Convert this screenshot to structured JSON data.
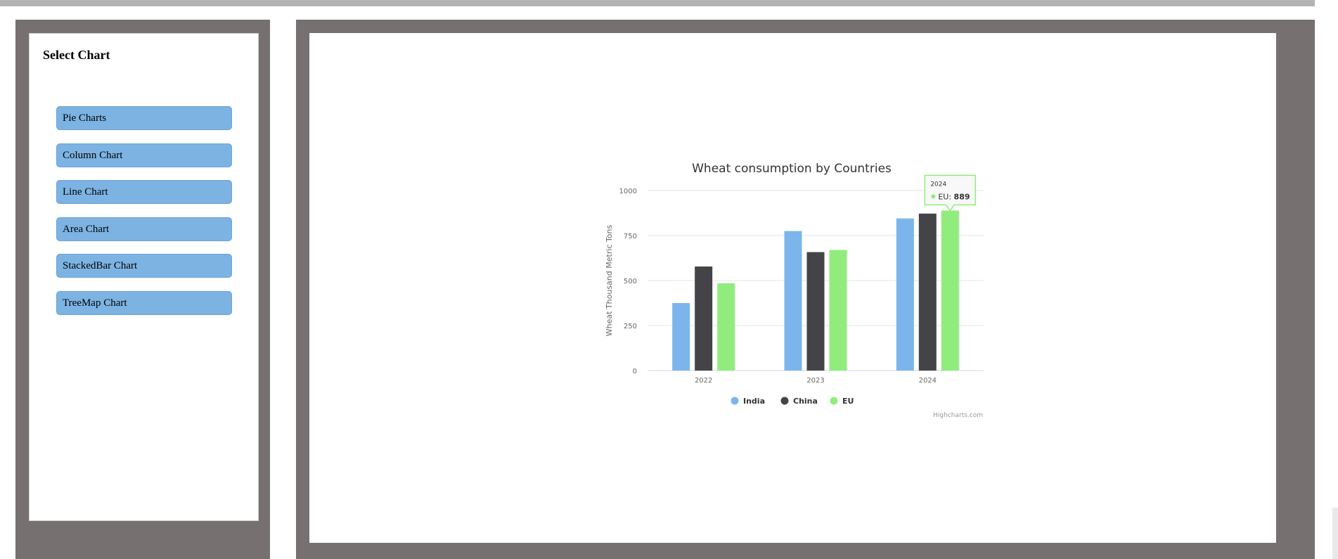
{
  "sidebar": {
    "title": "Select Chart",
    "items": [
      {
        "label": "Pie Charts"
      },
      {
        "label": "Column Chart"
      },
      {
        "label": "Line Chart"
      },
      {
        "label": "Area Chart"
      },
      {
        "label": "StackedBar Chart"
      },
      {
        "label": "TreeMap Chart"
      }
    ]
  },
  "chart_data": {
    "type": "bar",
    "title": "Wheat consumption by Countries",
    "xlabel": "",
    "ylabel": "Wheat Thousand Metric Tons",
    "categories": [
      "2022",
      "2023",
      "2024"
    ],
    "ylim": [
      0,
      1000
    ],
    "yticks": [
      0,
      250,
      500,
      750,
      1000
    ],
    "grid": true,
    "legend_position": "bottom",
    "series": [
      {
        "name": "India",
        "color": "#7cb5ec",
        "values": [
          375,
          775,
          845
        ]
      },
      {
        "name": "China",
        "color": "#434348",
        "values": [
          578,
          658,
          872
        ]
      },
      {
        "name": "EU",
        "color": "#90ed7d",
        "values": [
          485,
          670,
          889
        ]
      }
    ],
    "tooltip": {
      "category": "2024",
      "series": "EU",
      "value": 889
    },
    "credits": "Highcharts.com"
  }
}
